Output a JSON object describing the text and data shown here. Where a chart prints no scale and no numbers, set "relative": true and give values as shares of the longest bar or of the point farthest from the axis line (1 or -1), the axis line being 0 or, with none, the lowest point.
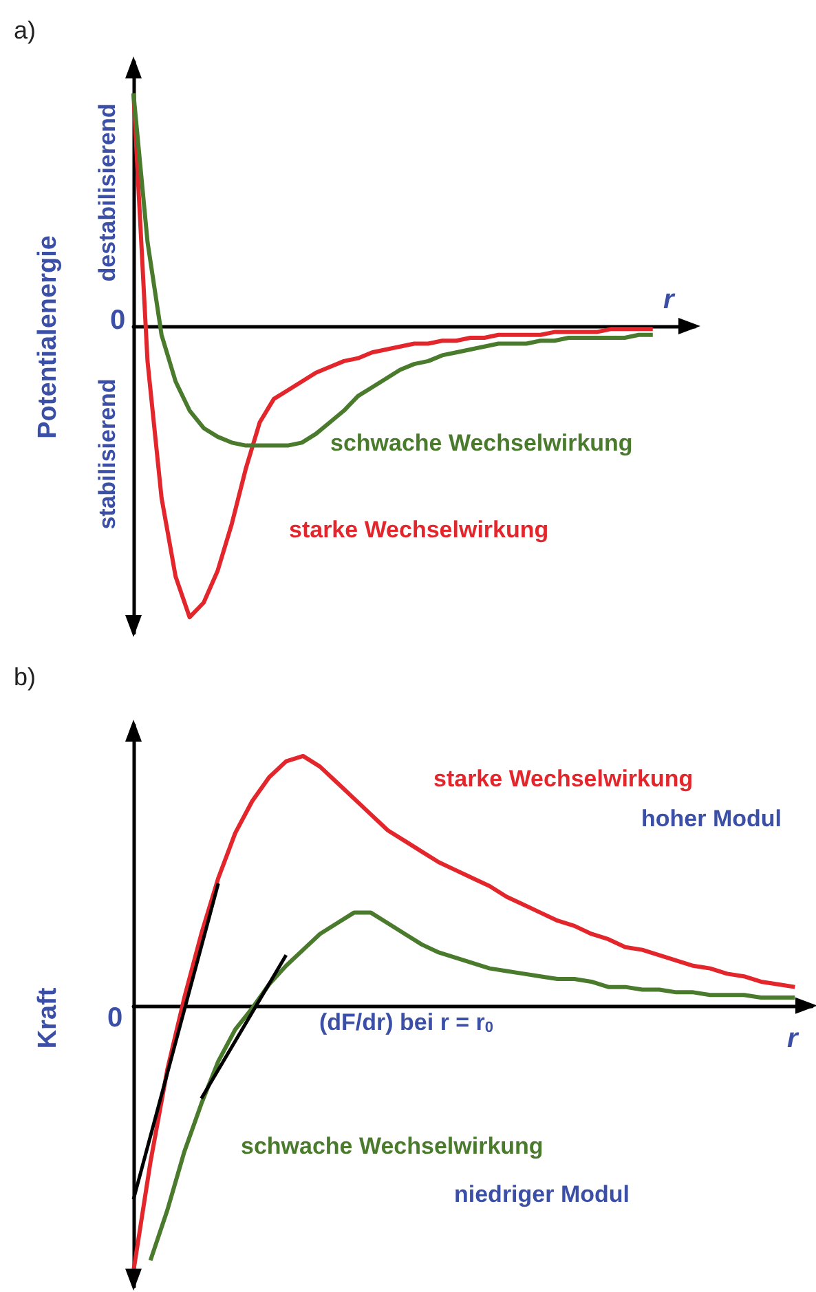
{
  "chart_data": [
    {
      "type": "line",
      "title": "a)",
      "xlabel": "r",
      "ylabel": "Potentialenergie",
      "relative": true,
      "marker": "none",
      "grid": false,
      "legend": false,
      "annotations": [
        "0",
        "destabilisierend",
        "stabilisierend"
      ],
      "categories": [
        null,
        null,
        null,
        null,
        null,
        null,
        null,
        null,
        null,
        null,
        null,
        null,
        null,
        null,
        null,
        null,
        null,
        null,
        null,
        null,
        null,
        null,
        null,
        null,
        null,
        null,
        null,
        null,
        null,
        null,
        null,
        null,
        null,
        null,
        null,
        null,
        null,
        null,
        null,
        null,
        null
      ],
      "series": [
        {
          "name": "starke Wechselwirkung",
          "color": "#e3262b",
          "values": [
            0.8,
            -0.12,
            -0.59,
            -0.86,
            -1.0,
            -0.95,
            -0.84,
            -0.68,
            -0.49,
            -0.33,
            -0.25,
            -0.22,
            -0.19,
            -0.16,
            -0.14,
            -0.12,
            -0.11,
            -0.09,
            -0.08,
            -0.07,
            -0.06,
            -0.06,
            -0.05,
            -0.05,
            -0.04,
            -0.04,
            -0.03,
            -0.03,
            -0.03,
            -0.03,
            -0.02,
            -0.02,
            -0.02,
            -0.02,
            -0.01,
            -0.01,
            -0.01,
            -0.01,
            null,
            null,
            null
          ]
        },
        {
          "name": "schwache Wechselwirkung",
          "color": "#4a7a2c",
          "values": [
            0.8,
            0.29,
            -0.03,
            -0.19,
            -0.29,
            -0.35,
            -0.38,
            -0.4,
            -0.41,
            -0.41,
            -0.41,
            -0.41,
            -0.4,
            -0.37,
            -0.33,
            -0.29,
            -0.24,
            -0.21,
            -0.18,
            -0.15,
            -0.13,
            -0.12,
            -0.1,
            -0.09,
            -0.08,
            -0.07,
            -0.06,
            -0.06,
            -0.06,
            -0.05,
            -0.05,
            -0.04,
            -0.04,
            -0.04,
            -0.04,
            -0.04,
            -0.03,
            -0.03,
            null,
            null,
            null
          ]
        }
      ]
    },
    {
      "type": "line",
      "title": "b)",
      "xlabel": "r",
      "ylabel": "Kraft",
      "relative": true,
      "marker": "none",
      "grid": false,
      "legend": false,
      "annotations": [
        "0",
        "(dF/dr) bei r = r$_{0}$",
        "hoher Modul",
        "niedriger Modul"
      ],
      "categories": [
        null,
        null,
        null,
        null,
        null,
        null,
        null,
        null,
        null,
        null,
        null,
        null,
        null,
        null,
        null,
        null,
        null,
        null,
        null,
        null,
        null,
        null,
        null,
        null,
        null,
        null,
        null,
        null,
        null,
        null,
        null,
        null,
        null,
        null,
        null,
        null,
        null,
        null,
        null,
        null,
        null
      ],
      "series": [
        {
          "name": "starke Wechselwirkung",
          "color": "#e3262b",
          "values": [
            -1.0,
            -0.59,
            -0.24,
            0.03,
            0.27,
            0.48,
            0.65,
            0.77,
            0.86,
            0.92,
            0.94,
            0.9,
            0.84,
            0.78,
            0.72,
            0.66,
            0.62,
            0.58,
            0.54,
            0.51,
            0.48,
            0.45,
            0.41,
            0.38,
            0.35,
            0.32,
            0.3,
            0.27,
            0.25,
            0.22,
            0.21,
            0.19,
            0.17,
            0.15,
            0.14,
            0.12,
            0.11,
            0.09,
            0.08,
            0.07,
            null
          ]
        },
        {
          "name": "schwache Wechselwirkung",
          "color": "#4a7a2c",
          "values": [
            null,
            -0.96,
            -0.77,
            -0.55,
            -0.37,
            -0.21,
            -0.09,
            -0.01,
            0.08,
            0.15,
            0.21,
            0.27,
            0.31,
            0.35,
            0.35,
            0.31,
            0.27,
            0.23,
            0.2,
            0.18,
            0.16,
            0.14,
            0.13,
            0.12,
            0.11,
            0.1,
            0.1,
            0.09,
            0.07,
            0.07,
            0.06,
            0.06,
            0.05,
            0.05,
            0.04,
            0.04,
            0.04,
            0.03,
            0.03,
            0.03,
            null
          ]
        },
        {
          "color": "#000000",
          "values": [
            -0.73,
            null,
            null,
            null,
            null,
            0.46,
            null,
            null,
            null,
            null,
            null,
            null,
            null,
            null,
            null,
            null,
            null,
            null,
            null,
            null,
            null,
            null,
            null,
            null,
            null,
            null,
            null,
            null,
            null,
            null,
            null,
            null,
            null,
            null,
            null,
            null,
            null,
            null,
            null,
            null,
            null
          ]
        },
        {
          "color": "#000000",
          "values": [
            null,
            null,
            null,
            null,
            -0.35,
            null,
            null,
            null,
            null,
            0.19,
            null,
            null,
            null,
            null,
            null,
            null,
            null,
            null,
            null,
            null,
            null,
            null,
            null,
            null,
            null,
            null,
            null,
            null,
            null,
            null,
            null,
            null,
            null,
            null,
            null,
            null,
            null,
            null,
            null,
            null,
            null
          ]
        }
      ]
    }
  ]
}
